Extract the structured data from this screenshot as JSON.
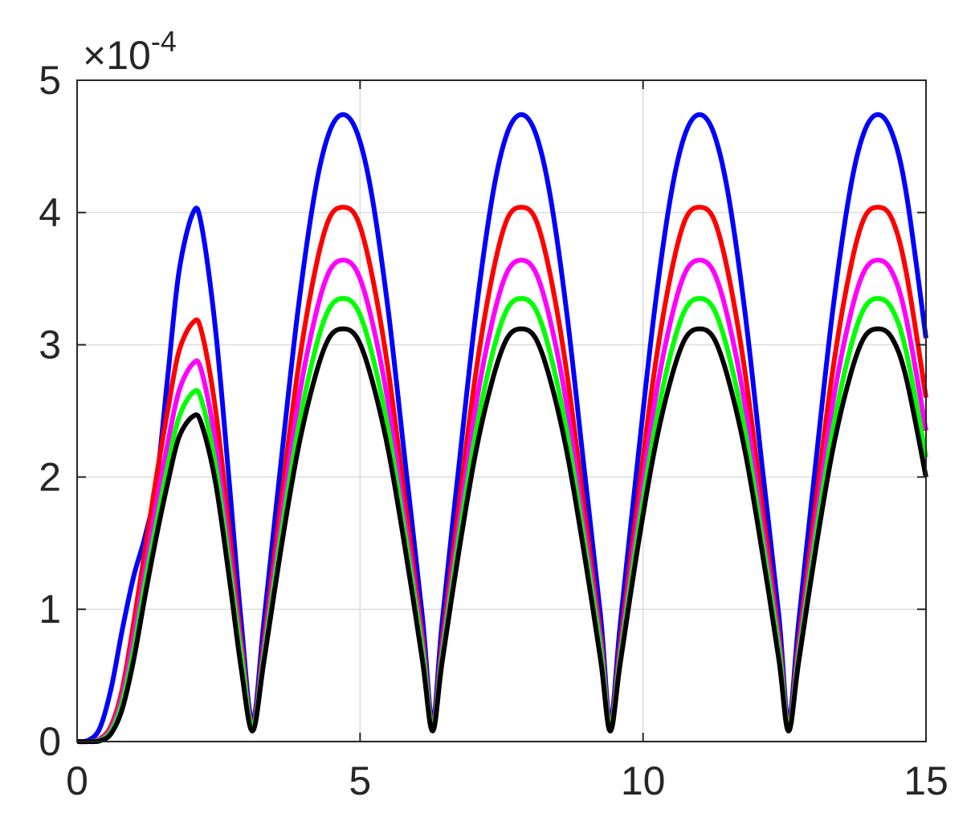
{
  "chart_data": {
    "type": "line",
    "title": "",
    "xlabel": "",
    "ylabel": "",
    "xlim": [
      0,
      15
    ],
    "ylim": [
      0,
      5
    ],
    "y_multiplier": {
      "base": "×10",
      "exponent": "-4"
    },
    "x_ticks": [
      0,
      5,
      10,
      15
    ],
    "y_ticks": [
      0,
      1,
      2,
      3,
      4,
      5
    ],
    "x_tick_labels": [
      "0",
      "5",
      "10",
      "15"
    ],
    "y_tick_labels": [
      "0",
      "1",
      "2",
      "3",
      "4",
      "5"
    ],
    "grid": true,
    "legend": "none",
    "series": [
      {
        "color": "#0000ff",
        "points": [
          [
            0,
            0
          ],
          [
            0.2,
            0.01
          ],
          [
            0.4,
            0.1
          ],
          [
            0.6,
            0.4
          ],
          [
            0.8,
            0.85
          ],
          [
            1.0,
            1.25
          ],
          [
            1.2,
            1.55
          ],
          [
            1.4,
            1.95
          ],
          [
            1.6,
            2.75
          ],
          [
            1.8,
            3.55
          ],
          [
            2.05,
            4.0
          ],
          [
            2.2,
            3.9
          ],
          [
            2.45,
            3.1
          ],
          [
            2.7,
            1.9
          ],
          [
            2.9,
            0.9
          ],
          [
            3.1,
            0.15
          ],
          [
            3.3,
            0.9
          ],
          [
            3.6,
            2.1
          ],
          [
            3.9,
            3.25
          ],
          [
            4.2,
            4.15
          ],
          [
            4.45,
            4.6
          ],
          [
            4.7,
            4.74
          ],
          [
            4.95,
            4.6
          ],
          [
            5.2,
            4.15
          ],
          [
            5.5,
            3.25
          ],
          [
            5.8,
            2.1
          ],
          [
            6.1,
            0.95
          ],
          [
            6.28,
            0.15
          ],
          [
            6.45,
            0.9
          ],
          [
            6.75,
            2.1
          ],
          [
            7.05,
            3.25
          ],
          [
            7.35,
            4.15
          ],
          [
            7.6,
            4.6
          ],
          [
            7.85,
            4.74
          ],
          [
            8.1,
            4.6
          ],
          [
            8.35,
            4.15
          ],
          [
            8.65,
            3.25
          ],
          [
            8.95,
            2.1
          ],
          [
            9.25,
            0.95
          ],
          [
            9.42,
            0.15
          ],
          [
            9.6,
            0.9
          ],
          [
            9.9,
            2.1
          ],
          [
            10.2,
            3.25
          ],
          [
            10.5,
            4.15
          ],
          [
            10.75,
            4.6
          ],
          [
            11.0,
            4.74
          ],
          [
            11.25,
            4.6
          ],
          [
            11.5,
            4.15
          ],
          [
            11.8,
            3.25
          ],
          [
            12.1,
            2.1
          ],
          [
            12.4,
            0.95
          ],
          [
            12.57,
            0.15
          ],
          [
            12.75,
            0.9
          ],
          [
            13.05,
            2.1
          ],
          [
            13.35,
            3.25
          ],
          [
            13.65,
            4.15
          ],
          [
            13.9,
            4.6
          ],
          [
            14.15,
            4.74
          ],
          [
            14.4,
            4.6
          ],
          [
            14.65,
            4.15
          ],
          [
            15.0,
            3.05
          ]
        ]
      },
      {
        "color": "#ff0000",
        "points": [
          [
            0,
            0
          ],
          [
            0.2,
            0.0
          ],
          [
            0.4,
            0.02
          ],
          [
            0.6,
            0.12
          ],
          [
            0.8,
            0.4
          ],
          [
            1.0,
            0.9
          ],
          [
            1.2,
            1.45
          ],
          [
            1.4,
            2.0
          ],
          [
            1.6,
            2.5
          ],
          [
            1.8,
            2.95
          ],
          [
            2.05,
            3.17
          ],
          [
            2.2,
            3.1
          ],
          [
            2.45,
            2.5
          ],
          [
            2.7,
            1.55
          ],
          [
            2.9,
            0.75
          ],
          [
            3.1,
            0.12
          ],
          [
            3.3,
            0.75
          ],
          [
            3.6,
            1.8
          ],
          [
            3.9,
            2.8
          ],
          [
            4.2,
            3.55
          ],
          [
            4.45,
            3.95
          ],
          [
            4.7,
            4.04
          ],
          [
            4.95,
            3.95
          ],
          [
            5.2,
            3.55
          ],
          [
            5.5,
            2.8
          ],
          [
            5.8,
            1.8
          ],
          [
            6.1,
            0.8
          ],
          [
            6.28,
            0.12
          ],
          [
            6.45,
            0.75
          ],
          [
            6.75,
            1.8
          ],
          [
            7.05,
            2.8
          ],
          [
            7.35,
            3.55
          ],
          [
            7.6,
            3.95
          ],
          [
            7.85,
            4.04
          ],
          [
            8.1,
            3.95
          ],
          [
            8.35,
            3.55
          ],
          [
            8.65,
            2.8
          ],
          [
            8.95,
            1.8
          ],
          [
            9.25,
            0.8
          ],
          [
            9.42,
            0.12
          ],
          [
            9.6,
            0.75
          ],
          [
            9.9,
            1.8
          ],
          [
            10.2,
            2.8
          ],
          [
            10.5,
            3.55
          ],
          [
            10.75,
            3.95
          ],
          [
            11.0,
            4.04
          ],
          [
            11.25,
            3.95
          ],
          [
            11.5,
            3.55
          ],
          [
            11.8,
            2.8
          ],
          [
            12.1,
            1.8
          ],
          [
            12.4,
            0.8
          ],
          [
            12.57,
            0.12
          ],
          [
            12.75,
            0.75
          ],
          [
            13.05,
            1.8
          ],
          [
            13.35,
            2.8
          ],
          [
            13.65,
            3.55
          ],
          [
            13.9,
            3.95
          ],
          [
            14.15,
            4.04
          ],
          [
            14.4,
            3.95
          ],
          [
            14.65,
            3.55
          ],
          [
            15.0,
            2.6
          ]
        ]
      },
      {
        "color": "#ff00ff",
        "points": [
          [
            0,
            0
          ],
          [
            0.2,
            0.0
          ],
          [
            0.4,
            0.015
          ],
          [
            0.6,
            0.1
          ],
          [
            0.8,
            0.35
          ],
          [
            1.0,
            0.8
          ],
          [
            1.2,
            1.3
          ],
          [
            1.4,
            1.8
          ],
          [
            1.6,
            2.25
          ],
          [
            1.8,
            2.65
          ],
          [
            2.05,
            2.86
          ],
          [
            2.2,
            2.8
          ],
          [
            2.45,
            2.25
          ],
          [
            2.7,
            1.4
          ],
          [
            2.9,
            0.7
          ],
          [
            3.1,
            0.11
          ],
          [
            3.3,
            0.7
          ],
          [
            3.6,
            1.65
          ],
          [
            3.9,
            2.55
          ],
          [
            4.2,
            3.2
          ],
          [
            4.45,
            3.55
          ],
          [
            4.7,
            3.64
          ],
          [
            4.95,
            3.55
          ],
          [
            5.2,
            3.2
          ],
          [
            5.5,
            2.55
          ],
          [
            5.8,
            1.65
          ],
          [
            6.1,
            0.75
          ],
          [
            6.28,
            0.11
          ],
          [
            6.45,
            0.7
          ],
          [
            6.75,
            1.65
          ],
          [
            7.05,
            2.55
          ],
          [
            7.35,
            3.2
          ],
          [
            7.6,
            3.55
          ],
          [
            7.85,
            3.64
          ],
          [
            8.1,
            3.55
          ],
          [
            8.35,
            3.2
          ],
          [
            8.65,
            2.55
          ],
          [
            8.95,
            1.65
          ],
          [
            9.25,
            0.75
          ],
          [
            9.42,
            0.11
          ],
          [
            9.6,
            0.7
          ],
          [
            9.9,
            1.65
          ],
          [
            10.2,
            2.55
          ],
          [
            10.5,
            3.2
          ],
          [
            10.75,
            3.55
          ],
          [
            11.0,
            3.64
          ],
          [
            11.25,
            3.55
          ],
          [
            11.5,
            3.2
          ],
          [
            11.8,
            2.55
          ],
          [
            12.1,
            1.65
          ],
          [
            12.4,
            0.75
          ],
          [
            12.57,
            0.11
          ],
          [
            12.75,
            0.7
          ],
          [
            13.05,
            1.65
          ],
          [
            13.35,
            2.55
          ],
          [
            13.65,
            3.2
          ],
          [
            13.9,
            3.55
          ],
          [
            14.15,
            3.64
          ],
          [
            14.4,
            3.55
          ],
          [
            14.65,
            3.2
          ],
          [
            15.0,
            2.35
          ]
        ]
      },
      {
        "color": "#00ff00",
        "points": [
          [
            0,
            0
          ],
          [
            0.2,
            0.0
          ],
          [
            0.4,
            0.01
          ],
          [
            0.6,
            0.08
          ],
          [
            0.8,
            0.3
          ],
          [
            1.0,
            0.7
          ],
          [
            1.2,
            1.2
          ],
          [
            1.4,
            1.65
          ],
          [
            1.6,
            2.08
          ],
          [
            1.8,
            2.45
          ],
          [
            2.05,
            2.64
          ],
          [
            2.2,
            2.58
          ],
          [
            2.45,
            2.08
          ],
          [
            2.7,
            1.3
          ],
          [
            2.9,
            0.65
          ],
          [
            3.1,
            0.1
          ],
          [
            3.3,
            0.65
          ],
          [
            3.6,
            1.55
          ],
          [
            3.9,
            2.35
          ],
          [
            4.2,
            2.95
          ],
          [
            4.45,
            3.27
          ],
          [
            4.7,
            3.35
          ],
          [
            4.95,
            3.27
          ],
          [
            5.2,
            2.95
          ],
          [
            5.5,
            2.35
          ],
          [
            5.8,
            1.55
          ],
          [
            6.1,
            0.7
          ],
          [
            6.28,
            0.1
          ],
          [
            6.45,
            0.65
          ],
          [
            6.75,
            1.55
          ],
          [
            7.05,
            2.35
          ],
          [
            7.35,
            2.95
          ],
          [
            7.6,
            3.27
          ],
          [
            7.85,
            3.35
          ],
          [
            8.1,
            3.27
          ],
          [
            8.35,
            2.95
          ],
          [
            8.65,
            2.35
          ],
          [
            8.95,
            1.55
          ],
          [
            9.25,
            0.7
          ],
          [
            9.42,
            0.1
          ],
          [
            9.6,
            0.65
          ],
          [
            9.9,
            1.55
          ],
          [
            10.2,
            2.35
          ],
          [
            10.5,
            2.95
          ],
          [
            10.75,
            3.27
          ],
          [
            11.0,
            3.35
          ],
          [
            11.25,
            3.27
          ],
          [
            11.5,
            2.95
          ],
          [
            11.8,
            2.35
          ],
          [
            12.1,
            1.55
          ],
          [
            12.4,
            0.7
          ],
          [
            12.57,
            0.1
          ],
          [
            12.75,
            0.65
          ],
          [
            13.05,
            1.55
          ],
          [
            13.35,
            2.35
          ],
          [
            13.65,
            2.95
          ],
          [
            13.9,
            3.27
          ],
          [
            14.15,
            3.35
          ],
          [
            14.4,
            3.27
          ],
          [
            14.65,
            2.95
          ],
          [
            15.0,
            2.15
          ]
        ]
      },
      {
        "color": "#000000",
        "points": [
          [
            0,
            0
          ],
          [
            0.2,
            0.0
          ],
          [
            0.4,
            0.005
          ],
          [
            0.6,
            0.06
          ],
          [
            0.8,
            0.25
          ],
          [
            1.0,
            0.62
          ],
          [
            1.2,
            1.1
          ],
          [
            1.4,
            1.55
          ],
          [
            1.6,
            1.95
          ],
          [
            1.8,
            2.3
          ],
          [
            2.05,
            2.46
          ],
          [
            2.2,
            2.4
          ],
          [
            2.45,
            1.95
          ],
          [
            2.7,
            1.2
          ],
          [
            2.9,
            0.55
          ],
          [
            3.1,
            0.08
          ],
          [
            3.3,
            0.6
          ],
          [
            3.6,
            1.45
          ],
          [
            3.9,
            2.2
          ],
          [
            4.2,
            2.75
          ],
          [
            4.45,
            3.05
          ],
          [
            4.7,
            3.12
          ],
          [
            4.95,
            3.05
          ],
          [
            5.2,
            2.75
          ],
          [
            5.5,
            2.2
          ],
          [
            5.8,
            1.45
          ],
          [
            6.1,
            0.62
          ],
          [
            6.28,
            0.08
          ],
          [
            6.45,
            0.6
          ],
          [
            6.75,
            1.45
          ],
          [
            7.05,
            2.2
          ],
          [
            7.35,
            2.75
          ],
          [
            7.6,
            3.05
          ],
          [
            7.85,
            3.12
          ],
          [
            8.1,
            3.05
          ],
          [
            8.35,
            2.75
          ],
          [
            8.65,
            2.2
          ],
          [
            8.95,
            1.45
          ],
          [
            9.25,
            0.62
          ],
          [
            9.42,
            0.08
          ],
          [
            9.6,
            0.6
          ],
          [
            9.9,
            1.45
          ],
          [
            10.2,
            2.2
          ],
          [
            10.5,
            2.75
          ],
          [
            10.75,
            3.05
          ],
          [
            11.0,
            3.12
          ],
          [
            11.25,
            3.05
          ],
          [
            11.5,
            2.75
          ],
          [
            11.8,
            2.2
          ],
          [
            12.1,
            1.45
          ],
          [
            12.4,
            0.62
          ],
          [
            12.57,
            0.08
          ],
          [
            12.75,
            0.6
          ],
          [
            13.05,
            1.45
          ],
          [
            13.35,
            2.2
          ],
          [
            13.65,
            2.75
          ],
          [
            13.9,
            3.05
          ],
          [
            14.15,
            3.12
          ],
          [
            14.4,
            3.05
          ],
          [
            14.65,
            2.75
          ],
          [
            15.0,
            2.0
          ]
        ]
      }
    ]
  }
}
